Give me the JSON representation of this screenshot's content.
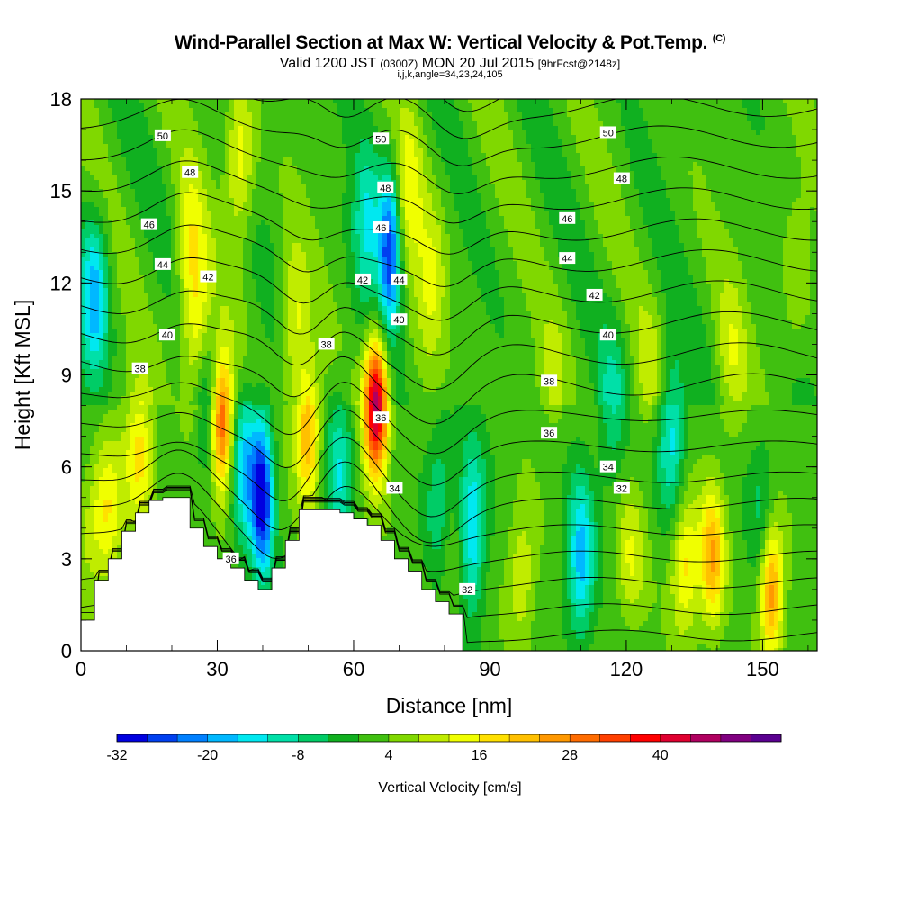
{
  "header": {
    "title": "Wind-Parallel Section at Max W: Vertical Velocity & Pot.Temp.",
    "title_tag": "(C)",
    "valid_main": "Valid 1200 JST",
    "valid_utc": "(0300Z)",
    "valid_date": "MON 20 Jul 2015",
    "forecast": "[9hrFcst@2148z]",
    "indices": "i,j,k,angle=34,23,24,105"
  },
  "chart_data": {
    "type": "heatmap",
    "xlabel": "Distance [nm]",
    "ylabel": "Height [Kft MSL]",
    "xlim": [
      0,
      162
    ],
    "ylim": [
      0,
      18
    ],
    "x_ticks": [
      "0",
      "30",
      "60",
      "90",
      "120",
      "150"
    ],
    "y_ticks": [
      "0",
      "3",
      "6",
      "9",
      "12",
      "15",
      "18"
    ],
    "colorbar": {
      "label": "Vertical Velocity [cm/s]",
      "ticks": [
        "-32",
        "-20",
        "-8",
        "4",
        "16",
        "28",
        "40"
      ],
      "levels_min": -32,
      "levels_step": 4,
      "colors": [
        "#0000e0",
        "#0040f0",
        "#0080ff",
        "#00b8ff",
        "#00e8f0",
        "#00e0a8",
        "#00cc66",
        "#10b020",
        "#40c010",
        "#80d800",
        "#c0ec00",
        "#f0ff00",
        "#ffe000",
        "#ffc000",
        "#ff9800",
        "#ff6c00",
        "#ff4000",
        "#ff0000",
        "#e00030",
        "#b00060",
        "#800080",
        "#5a0090"
      ]
    },
    "updrafts": [
      {
        "x": 2,
        "z": 4.0,
        "peak": 6
      },
      {
        "x": 6,
        "z": 4.5,
        "peak": 14
      },
      {
        "x": 13,
        "z": 6.5,
        "peak": 16
      },
      {
        "x": 24,
        "z": 13.0,
        "peak": 12
      },
      {
        "x": 26,
        "z": 10.0,
        "peak": 14
      },
      {
        "x": 31,
        "z": 7.5,
        "peak": 34
      },
      {
        "x": 35,
        "z": 16.0,
        "peak": 14
      },
      {
        "x": 47,
        "z": 10.5,
        "peak": 12
      },
      {
        "x": 50,
        "z": 7.0,
        "peak": 22
      },
      {
        "x": 65,
        "z": 8.0,
        "peak": 46
      },
      {
        "x": 72,
        "z": 15.0,
        "peak": 12
      },
      {
        "x": 77,
        "z": 12.0,
        "peak": 10
      },
      {
        "x": 82,
        "z": 3.0,
        "peak": 6
      },
      {
        "x": 97,
        "z": 2.5,
        "peak": 10
      },
      {
        "x": 104,
        "z": 9.0,
        "peak": 6
      },
      {
        "x": 121,
        "z": 3.0,
        "peak": 10
      },
      {
        "x": 125,
        "z": 9.0,
        "peak": 6
      },
      {
        "x": 133,
        "z": 2.8,
        "peak": 16
      },
      {
        "x": 139,
        "z": 3.0,
        "peak": 22
      },
      {
        "x": 143,
        "z": 9.5,
        "peak": 8
      },
      {
        "x": 152,
        "z": 2.0,
        "peak": 26
      },
      {
        "x": 157,
        "z": 12.0,
        "peak": 6
      }
    ],
    "downdrafts": [
      {
        "x": 3,
        "z": 11.5,
        "peak": -20
      },
      {
        "x": 28,
        "z": 8.0,
        "peak": -14
      },
      {
        "x": 40,
        "z": 5.0,
        "peak": -32
      },
      {
        "x": 36,
        "z": 6.0,
        "peak": -18
      },
      {
        "x": 57,
        "z": 6.0,
        "peak": -14
      },
      {
        "x": 63,
        "z": 14.0,
        "peak": -14
      },
      {
        "x": 68,
        "z": 13.0,
        "peak": -30
      },
      {
        "x": 79,
        "z": 5.0,
        "peak": -10
      },
      {
        "x": 86,
        "z": 4.0,
        "peak": -20
      },
      {
        "x": 110,
        "z": 3.0,
        "peak": -20
      },
      {
        "x": 117,
        "z": 8.0,
        "peak": -10
      },
      {
        "x": 130,
        "z": 7.0,
        "peak": -16
      },
      {
        "x": 150,
        "z": 4.5,
        "peak": -8
      }
    ],
    "terrain": {
      "x": [
        0,
        3,
        3,
        6,
        6,
        9,
        9,
        12,
        12,
        15,
        15,
        18,
        18,
        24,
        24,
        27,
        27,
        30,
        30,
        33,
        33,
        36,
        36,
        39,
        39,
        42,
        42,
        45,
        45,
        48,
        48,
        54,
        54,
        57,
        57,
        60,
        60,
        63,
        63,
        66,
        66,
        69,
        69,
        72,
        72,
        75,
        75,
        78,
        78,
        81,
        81,
        84,
        84
      ],
      "z": [
        1.0,
        1.0,
        2.3,
        2.3,
        3.0,
        3.0,
        3.9,
        3.9,
        4.5,
        4.5,
        4.9,
        4.9,
        5.0,
        5.0,
        4.0,
        4.0,
        3.4,
        3.4,
        3.0,
        3.0,
        2.7,
        2.7,
        2.3,
        2.3,
        2.0,
        2.0,
        2.7,
        2.7,
        3.6,
        3.6,
        4.6,
        4.6,
        4.6,
        4.6,
        4.5,
        4.5,
        4.3,
        4.3,
        4.1,
        4.1,
        3.6,
        3.6,
        3.0,
        3.0,
        2.6,
        2.6,
        2.0,
        2.0,
        1.6,
        1.6,
        1.2,
        1.2,
        0
      ]
    },
    "isentropes": {
      "levels": [
        32,
        33,
        34,
        35,
        36,
        37,
        38,
        39,
        40,
        41,
        42,
        43,
        44,
        45,
        46,
        47,
        48,
        49,
        50,
        51
      ],
      "labels": [
        {
          "text": "50",
          "x": 18,
          "z": 16.8
        },
        {
          "text": "48",
          "x": 24,
          "z": 15.6
        },
        {
          "text": "46",
          "x": 15,
          "z": 13.9
        },
        {
          "text": "44",
          "x": 18,
          "z": 12.6
        },
        {
          "text": "42",
          "x": 28,
          "z": 12.2
        },
        {
          "text": "40",
          "x": 19,
          "z": 10.3
        },
        {
          "text": "38",
          "x": 13,
          "z": 9.2
        },
        {
          "text": "36",
          "x": 33,
          "z": 3.0
        },
        {
          "text": "38",
          "x": 54,
          "z": 10.0
        },
        {
          "text": "50",
          "x": 66,
          "z": 16.7
        },
        {
          "text": "48",
          "x": 67,
          "z": 15.1
        },
        {
          "text": "46",
          "x": 66,
          "z": 13.8
        },
        {
          "text": "42",
          "x": 62,
          "z": 12.1
        },
        {
          "text": "44",
          "x": 70,
          "z": 12.1
        },
        {
          "text": "40",
          "x": 70,
          "z": 10.8
        },
        {
          "text": "36",
          "x": 66,
          "z": 7.6
        },
        {
          "text": "34",
          "x": 69,
          "z": 5.3
        },
        {
          "text": "32",
          "x": 85,
          "z": 2.0
        },
        {
          "text": "50",
          "x": 116,
          "z": 16.9
        },
        {
          "text": "48",
          "x": 119,
          "z": 15.4
        },
        {
          "text": "46",
          "x": 107,
          "z": 14.1
        },
        {
          "text": "44",
          "x": 107,
          "z": 12.8
        },
        {
          "text": "42",
          "x": 113,
          "z": 11.6
        },
        {
          "text": "40",
          "x": 116,
          "z": 10.3
        },
        {
          "text": "38",
          "x": 103,
          "z": 8.8
        },
        {
          "text": "36",
          "x": 103,
          "z": 7.1
        },
        {
          "text": "34",
          "x": 116,
          "z": 6.0
        },
        {
          "text": "32",
          "x": 119,
          "z": 5.3
        }
      ]
    }
  }
}
